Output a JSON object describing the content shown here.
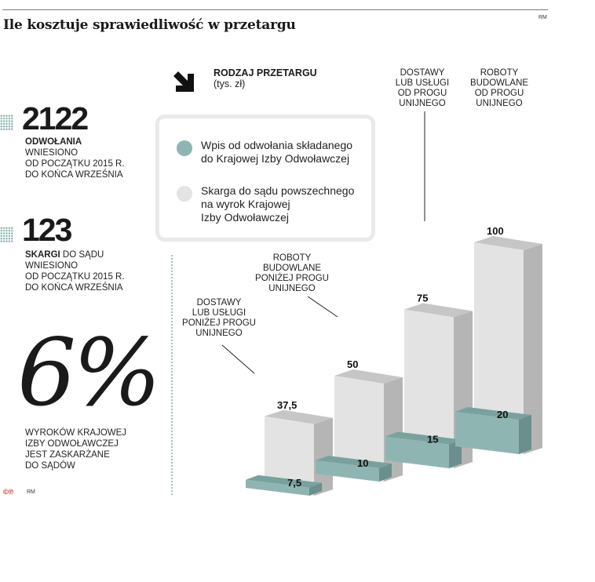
{
  "header": {
    "title": "Ile kosztuje sprawiedliwość w przetargu",
    "credit": "RM"
  },
  "stats": {
    "appeals": {
      "number": "2122",
      "label_bold": "ODWOŁANIA",
      "line1": "WNIESIONO",
      "line2": "OD POCZĄTKU 2015 R.",
      "line3": "DO KOŃCA WRZEŚNIA"
    },
    "complaints": {
      "number": "123",
      "label_bold": "SKARGI",
      "label_rest": " DO SĄDU",
      "line1": "WNIESIONO",
      "line2": "OD POCZĄTKU 2015 R.",
      "line3": "DO KOŃCA WRZEŚNIA"
    },
    "percent": {
      "number": "6%",
      "line1": "WYROKÓW KRAJOWEJ",
      "line2": "IZBY ODWOŁAWCZEJ",
      "line3": "JEST ZASKARŻANE",
      "line4": "DO SĄDÓW"
    }
  },
  "footer": {
    "logo": "©℗",
    "credit": "RM"
  },
  "chart_data": {
    "type": "bar",
    "title": "RODZAJ PRZETARGU",
    "subtitle": "(tys. zł)",
    "categories": [
      [
        "DOSTAWY",
        "LUB USŁUGI",
        "PONIŻEJ PROGU",
        "UNIJNEGO"
      ],
      [
        "ROBOTY",
        "BUDOWLANE",
        "PONIŻEJ PROGU",
        "UNIJNEGO"
      ],
      [
        "DOSTAWY",
        "LUB USŁUGI",
        "OD PROGU",
        "UNIJNEGO"
      ],
      [
        "ROBOTY",
        "BUDOWLANE",
        "OD PROGU",
        "UNIJNEGO"
      ]
    ],
    "series": [
      {
        "name": "Wpis od odwołania składanego do Krajowej Izby Odwoławczej",
        "legend_lines": [
          "Wpis od odwołania składanego",
          "do Krajowej Izby Odwoławczej"
        ],
        "values": [
          7.5,
          10,
          15,
          20
        ],
        "labels": [
          "7,5",
          "10",
          "15",
          "20"
        ],
        "color": "#8fb5b2"
      },
      {
        "name": "Skarga do sądu powszechnego na wyrok Krajowej Izby Odwoławczej",
        "legend_lines": [
          "Skarga do sądu powszechnego",
          "na wyrok Krajowej",
          "Izby Odwoławczej"
        ],
        "values": [
          37.5,
          50,
          75,
          100
        ],
        "labels": [
          "37,5",
          "50",
          "75",
          "100"
        ],
        "color": "#e3e3e3"
      }
    ],
    "grid": false,
    "legend_position": "top-center"
  }
}
